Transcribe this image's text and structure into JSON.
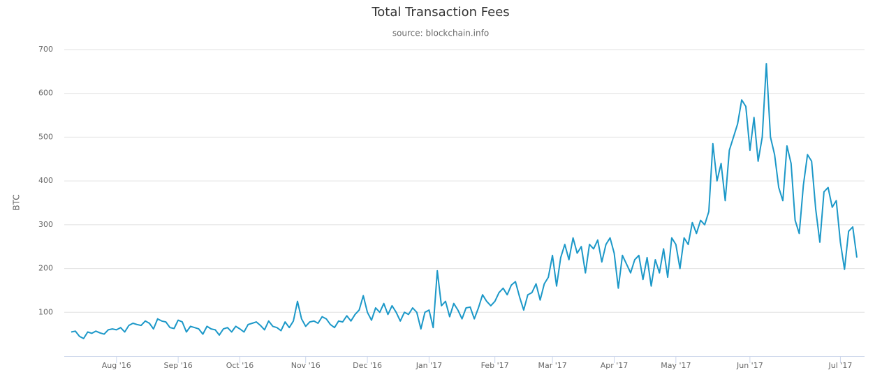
{
  "chart_data": {
    "type": "line",
    "title": "Total Transaction Fees",
    "subtitle": "source: blockchain.info",
    "y_label": "BTC",
    "color": "#1c98c8",
    "ylim": [
      0,
      700
    ],
    "yticks": [
      100,
      200,
      300,
      400,
      500,
      600,
      700
    ],
    "grid": true,
    "categories": [
      null,
      null,
      null,
      null,
      null,
      null,
      null,
      null,
      null,
      null,
      null,
      "Aug '16",
      null,
      null,
      null,
      null,
      null,
      null,
      null,
      null,
      null,
      null,
      null,
      null,
      null,
      null,
      "Sep '16",
      null,
      null,
      null,
      null,
      null,
      null,
      null,
      null,
      null,
      null,
      null,
      null,
      null,
      null,
      "Oct '16",
      null,
      null,
      null,
      null,
      null,
      null,
      null,
      null,
      null,
      null,
      null,
      null,
      null,
      null,
      null,
      "Nov '16",
      null,
      null,
      null,
      null,
      null,
      null,
      null,
      null,
      null,
      null,
      null,
      null,
      null,
      null,
      "Dec '16",
      null,
      null,
      null,
      null,
      null,
      null,
      null,
      null,
      null,
      null,
      null,
      null,
      null,
      null,
      "Jan '17",
      null,
      null,
      null,
      null,
      null,
      null,
      null,
      null,
      null,
      null,
      null,
      null,
      null,
      null,
      null,
      "Feb '17",
      null,
      null,
      null,
      null,
      null,
      null,
      null,
      null,
      null,
      null,
      null,
      null,
      null,
      "Mar '17",
      null,
      null,
      null,
      null,
      null,
      null,
      null,
      null,
      null,
      null,
      null,
      null,
      null,
      null,
      "Apr '17",
      null,
      null,
      null,
      null,
      null,
      null,
      null,
      null,
      null,
      null,
      null,
      null,
      null,
      null,
      "May '17",
      null,
      null,
      null,
      null,
      null,
      null,
      null,
      null,
      null,
      null,
      null,
      null,
      null,
      null,
      null,
      null,
      null,
      "Jun '17",
      null,
      null,
      null,
      null,
      null,
      null,
      null,
      null,
      null,
      null,
      null,
      null,
      null,
      null,
      null,
      null,
      null,
      null,
      null,
      null,
      null,
      "Jul '17",
      null,
      null,
      null,
      null
    ],
    "values": [
      55,
      57,
      45,
      40,
      55,
      52,
      57,
      53,
      50,
      60,
      62,
      60,
      65,
      55,
      70,
      75,
      72,
      70,
      80,
      75,
      62,
      85,
      80,
      78,
      65,
      63,
      82,
      78,
      55,
      68,
      65,
      62,
      50,
      68,
      62,
      60,
      48,
      62,
      65,
      55,
      68,
      62,
      55,
      72,
      75,
      78,
      70,
      60,
      80,
      68,
      65,
      58,
      78,
      65,
      80,
      125,
      85,
      68,
      78,
      80,
      75,
      90,
      85,
      72,
      65,
      80,
      78,
      92,
      80,
      95,
      105,
      138,
      100,
      82,
      110,
      100,
      120,
      95,
      115,
      100,
      80,
      100,
      95,
      110,
      100,
      62,
      100,
      105,
      65,
      195,
      115,
      125,
      90,
      120,
      105,
      85,
      110,
      112,
      85,
      110,
      140,
      125,
      115,
      125,
      145,
      155,
      140,
      162,
      170,
      135,
      105,
      140,
      145,
      165,
      128,
      165,
      180,
      230,
      160,
      225,
      255,
      220,
      270,
      235,
      250,
      190,
      255,
      245,
      265,
      215,
      255,
      270,
      235,
      155,
      230,
      210,
      190,
      220,
      230,
      175,
      225,
      160,
      220,
      190,
      245,
      180,
      270,
      255,
      200,
      270,
      255,
      305,
      280,
      310,
      300,
      330,
      485,
      400,
      440,
      355,
      470,
      500,
      530,
      585,
      570,
      470,
      545,
      445,
      500,
      668,
      500,
      460,
      385,
      355,
      480,
      440,
      310,
      280,
      390,
      460,
      445,
      335,
      260,
      375,
      385,
      340,
      355,
      260,
      198,
      285,
      295,
      225
    ]
  }
}
